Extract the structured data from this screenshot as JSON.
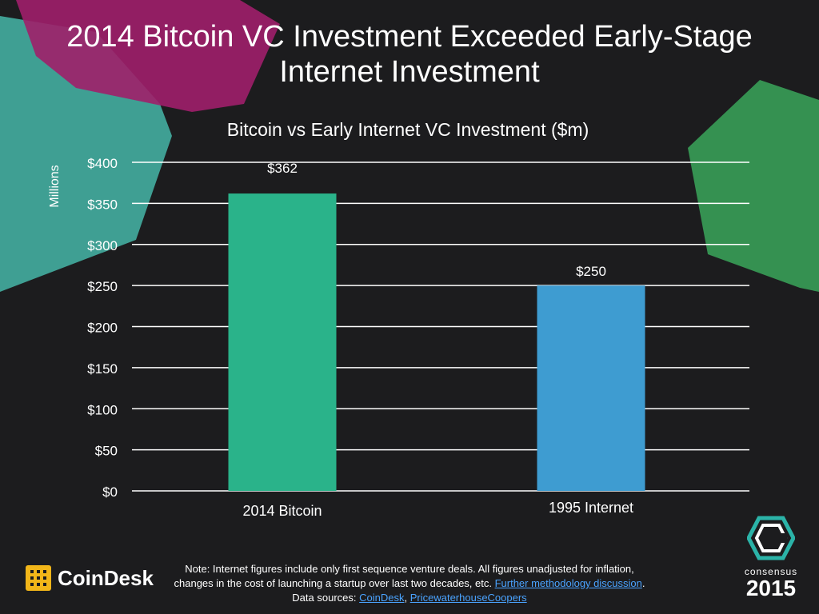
{
  "slide": {
    "title_line1": "2014 Bitcoin VC Investment Exceeded Early-Stage",
    "title_line2": "Internet Investment"
  },
  "colors": {
    "background": "#1c1c1e",
    "bitcoin_bar": "#2ab38a",
    "internet_bar": "#3e9cd1",
    "accent_teal": "#45b6a8",
    "accent_magenta": "#a01f6a",
    "accent_green": "#3aa65a",
    "link": "#4aa3ff"
  },
  "chart_data": {
    "type": "bar",
    "title": "Bitcoin vs Early Internet VC Investment ($m)",
    "xlabel": "",
    "ylabel": "Millions",
    "categories": [
      "2014 Bitcoin",
      "1995 Internet"
    ],
    "values": [
      362,
      250
    ],
    "data_labels": [
      "$362",
      "$250"
    ],
    "bar_colors": [
      "#2ab38a",
      "#3e9cd1"
    ],
    "ylim": [
      0,
      400
    ],
    "yticks": [
      0,
      50,
      100,
      150,
      200,
      250,
      300,
      350,
      400
    ],
    "ytick_labels": [
      "$0",
      "$50",
      "$100",
      "$150",
      "$200",
      "$250",
      "$300",
      "$350",
      "$400"
    ],
    "grid": true
  },
  "footer": {
    "note_line1": "Note: Internet figures include only first sequence venture deals. All figures unadjusted for inflation,",
    "note_line2_prefix": "changes in the cost of launching a startup over last two decades, etc. ",
    "note_link_methodology": "Further methodology discussion",
    "note_line2_suffix": ".",
    "sources_prefix": "Data sources: ",
    "source_link_1": "CoinDesk",
    "sources_separator": ", ",
    "source_link_2": "PricewaterhouseCoopers"
  },
  "branding": {
    "coindesk_name": "CoinDesk",
    "coindesk_icon": "coindesk-grid-icon",
    "consensus_word": "consensus",
    "consensus_year": "2015",
    "consensus_icon": "consensus-hexagon-icon"
  }
}
